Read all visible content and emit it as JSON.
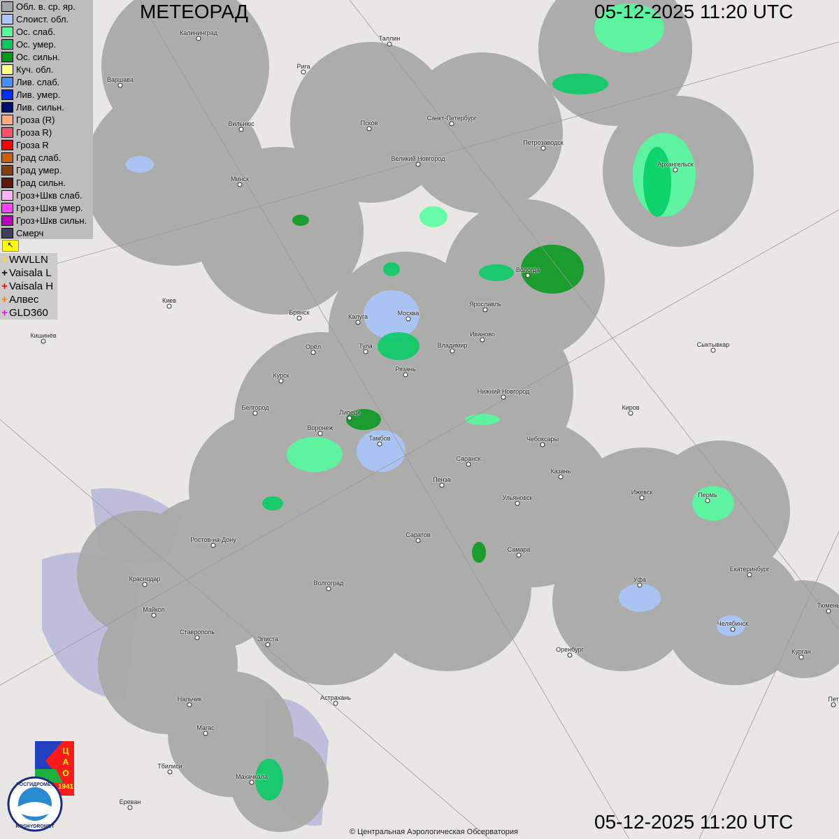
{
  "header": {
    "title": "МЕТЕОРАД",
    "timestamp_top": "05-12-2025  11:20 UTC",
    "timestamp_bottom": "05-12-2025  11:20 UTC"
  },
  "legend": [
    {
      "label": "Обл. в. ср. яр.",
      "color": "#a0a8ac"
    },
    {
      "label": "Слоист. обл.",
      "color": "#a8c8ff"
    },
    {
      "label": "Ос. слаб.",
      "color": "#50ff9c"
    },
    {
      "label": "Ос. умер.",
      "color": "#00cc60"
    },
    {
      "label": "Ос. сильн.",
      "color": "#009a18"
    },
    {
      "label": "Куч. обл.",
      "color": "#ffff80"
    },
    {
      "label": "Лив. слаб.",
      "color": "#4090ff"
    },
    {
      "label": "Лив. умер.",
      "color": "#0030ff"
    },
    {
      "label": "Лив. сильн.",
      "color": "#001070"
    },
    {
      "label": "Гроза (R)",
      "color": "#ffa878"
    },
    {
      "label": "Гроза R)",
      "color": "#ff5070"
    },
    {
      "label": "Гроза R",
      "color": "#ff0000"
    },
    {
      "label": "Град слаб.",
      "color": "#cc6000"
    },
    {
      "label": "Град умер.",
      "color": "#884010"
    },
    {
      "label": "Град сильн.",
      "color": "#601808"
    },
    {
      "label": "Гроз+Шкв слаб.",
      "color": "#ffb0ff"
    },
    {
      "label": "Гроз+Шкв умер.",
      "color": "#ff40ff"
    },
    {
      "label": "Гроз+Шкв сильн.",
      "color": "#c000c0"
    },
    {
      "label": "Смерч",
      "color": "#404058"
    }
  ],
  "lightning_sources": [
    {
      "label": "WWLLN",
      "color": "#ffe000"
    },
    {
      "label": "Vaisala L",
      "color": "#000000"
    },
    {
      "label": "Vaisala H",
      "color": "#ff0000"
    },
    {
      "label": "Алвес",
      "color": "#ff8000"
    },
    {
      "label": "GLD360",
      "color": "#ff00ff"
    }
  ],
  "cities": [
    "Калининград",
    "Таллин",
    "Рига",
    "Варшава",
    "Вильнюс",
    "Псков",
    "Санкт-Петербург",
    "Петрозаводск",
    "Архангельск",
    "Великий Новгород",
    "Минск",
    "Вологда",
    "Ярославль",
    "Москва",
    "Калуга",
    "Брянск",
    "Киев",
    "Кишинёв",
    "Орёл",
    "Тула",
    "Владимир",
    "Иваново",
    "Сыктывкар",
    "Рязань",
    "Курск",
    "Нижний Новгород",
    "Киров",
    "Белгород",
    "Липецк",
    "Воронеж",
    "Тамбов",
    "Чебоксары",
    "Саранск",
    "Пенза",
    "Казань",
    "Ижевск",
    "Пермь",
    "Ульяновск",
    "Ростов-на-Дону",
    "Саратов",
    "Самара",
    "Краснодар",
    "Уфа",
    "Екатеринбург",
    "Волгоград",
    "Тюмень",
    "Майкоп",
    "Челябинск",
    "Ставрополь",
    "Элиста",
    "Оренбург",
    "Курган",
    "Астрахань",
    "Нальчик",
    "Магас",
    "Тбилиси",
    "Махачкала",
    "Ереван",
    "Пет"
  ],
  "logos": {
    "cao": "ЦАО 1941",
    "roshydromet": "РОСГИДРОМЕТ ROSHYDROMET"
  },
  "footer": {
    "copyright": "© Центральная Аэрологическая Обсерватория"
  }
}
